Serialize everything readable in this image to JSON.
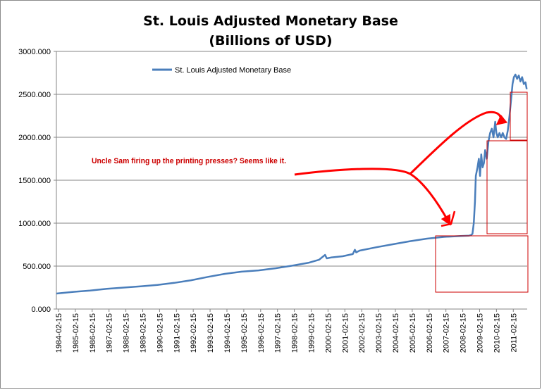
{
  "chart_data": {
    "type": "line",
    "title": "St. Louis Adjusted Monetary Base",
    "subtitle": "(Billions of USD)",
    "xlabel": "",
    "ylabel": "",
    "ylim": [
      0,
      3000
    ],
    "y_ticks": [
      "0.000",
      "500.000",
      "1000.000",
      "1500.000",
      "2000.000",
      "2500.000",
      "3000.000"
    ],
    "x_ticks": [
      "1984-02-15",
      "1985-02-15",
      "1986-02-15",
      "1987-02-15",
      "1988-02-15",
      "1989-02-15",
      "1990-02-15",
      "1991-02-15",
      "1992-02-15",
      "1993-02-15",
      "1994-02-15",
      "1995-02-15",
      "1996-02-15",
      "1997-02-15",
      "1998-02-15",
      "1999-02-15",
      "2000-02-15",
      "2001-02-15",
      "2002-02-15",
      "2003-02-15",
      "2004-02-15",
      "2005-02-15",
      "2006-02-15",
      "2007-02-15",
      "2008-02-15",
      "2009-02-15",
      "2010-02-15",
      "2011-02-15"
    ],
    "xlim": [
      1984.0,
      2011.95
    ],
    "grid": "horizontal",
    "legend": "top-left",
    "series": [
      {
        "name": "St. Louis Adjusted Monetary Base",
        "color": "#4a7ebb",
        "x": [
          1984.0,
          1985.0,
          1986.0,
          1987.0,
          1988.0,
          1989.0,
          1990.0,
          1991.0,
          1992.0,
          1993.0,
          1994.0,
          1995.0,
          1996.0,
          1997.0,
          1998.0,
          1999.0,
          1999.6,
          1999.95,
          2000.05,
          2000.3,
          2001.0,
          2001.6,
          2001.72,
          2001.8,
          2002.0,
          2003.0,
          2004.0,
          2005.0,
          2006.0,
          2007.0,
          2008.0,
          2008.5,
          2008.6,
          2008.7,
          2008.78,
          2008.85,
          2008.9,
          2009.0,
          2009.08,
          2009.15,
          2009.22,
          2009.3,
          2009.38,
          2009.45,
          2009.55,
          2009.65,
          2009.75,
          2009.85,
          2009.95,
          2010.05,
          2010.12,
          2010.2,
          2010.3,
          2010.4,
          2010.5,
          2010.6,
          2010.7,
          2010.8,
          2010.9,
          2011.0,
          2011.08,
          2011.16,
          2011.25,
          2011.35,
          2011.45,
          2011.55,
          2011.65,
          2011.75,
          2011.85,
          2011.92
        ],
        "values": [
          180,
          200,
          215,
          235,
          250,
          265,
          280,
          305,
          335,
          375,
          410,
          435,
          450,
          475,
          505,
          540,
          575,
          630,
          590,
          600,
          615,
          640,
          690,
          660,
          680,
          720,
          755,
          790,
          820,
          840,
          850,
          855,
          860,
          875,
          1000,
          1250,
          1550,
          1650,
          1750,
          1550,
          1800,
          1650,
          1700,
          1850,
          1750,
          1950,
          2050,
          2100,
          2000,
          2180,
          2050,
          2000,
          2050,
          2000,
          2050,
          2000,
          1980,
          2080,
          2250,
          2450,
          2620,
          2700,
          2730,
          2680,
          2720,
          2650,
          2700,
          2620,
          2640,
          2560
        ]
      }
    ],
    "annotations": [
      {
        "text": "Uncle Sam firing up the printing presses? Seems like it.",
        "color": "#cc0000"
      }
    ]
  }
}
